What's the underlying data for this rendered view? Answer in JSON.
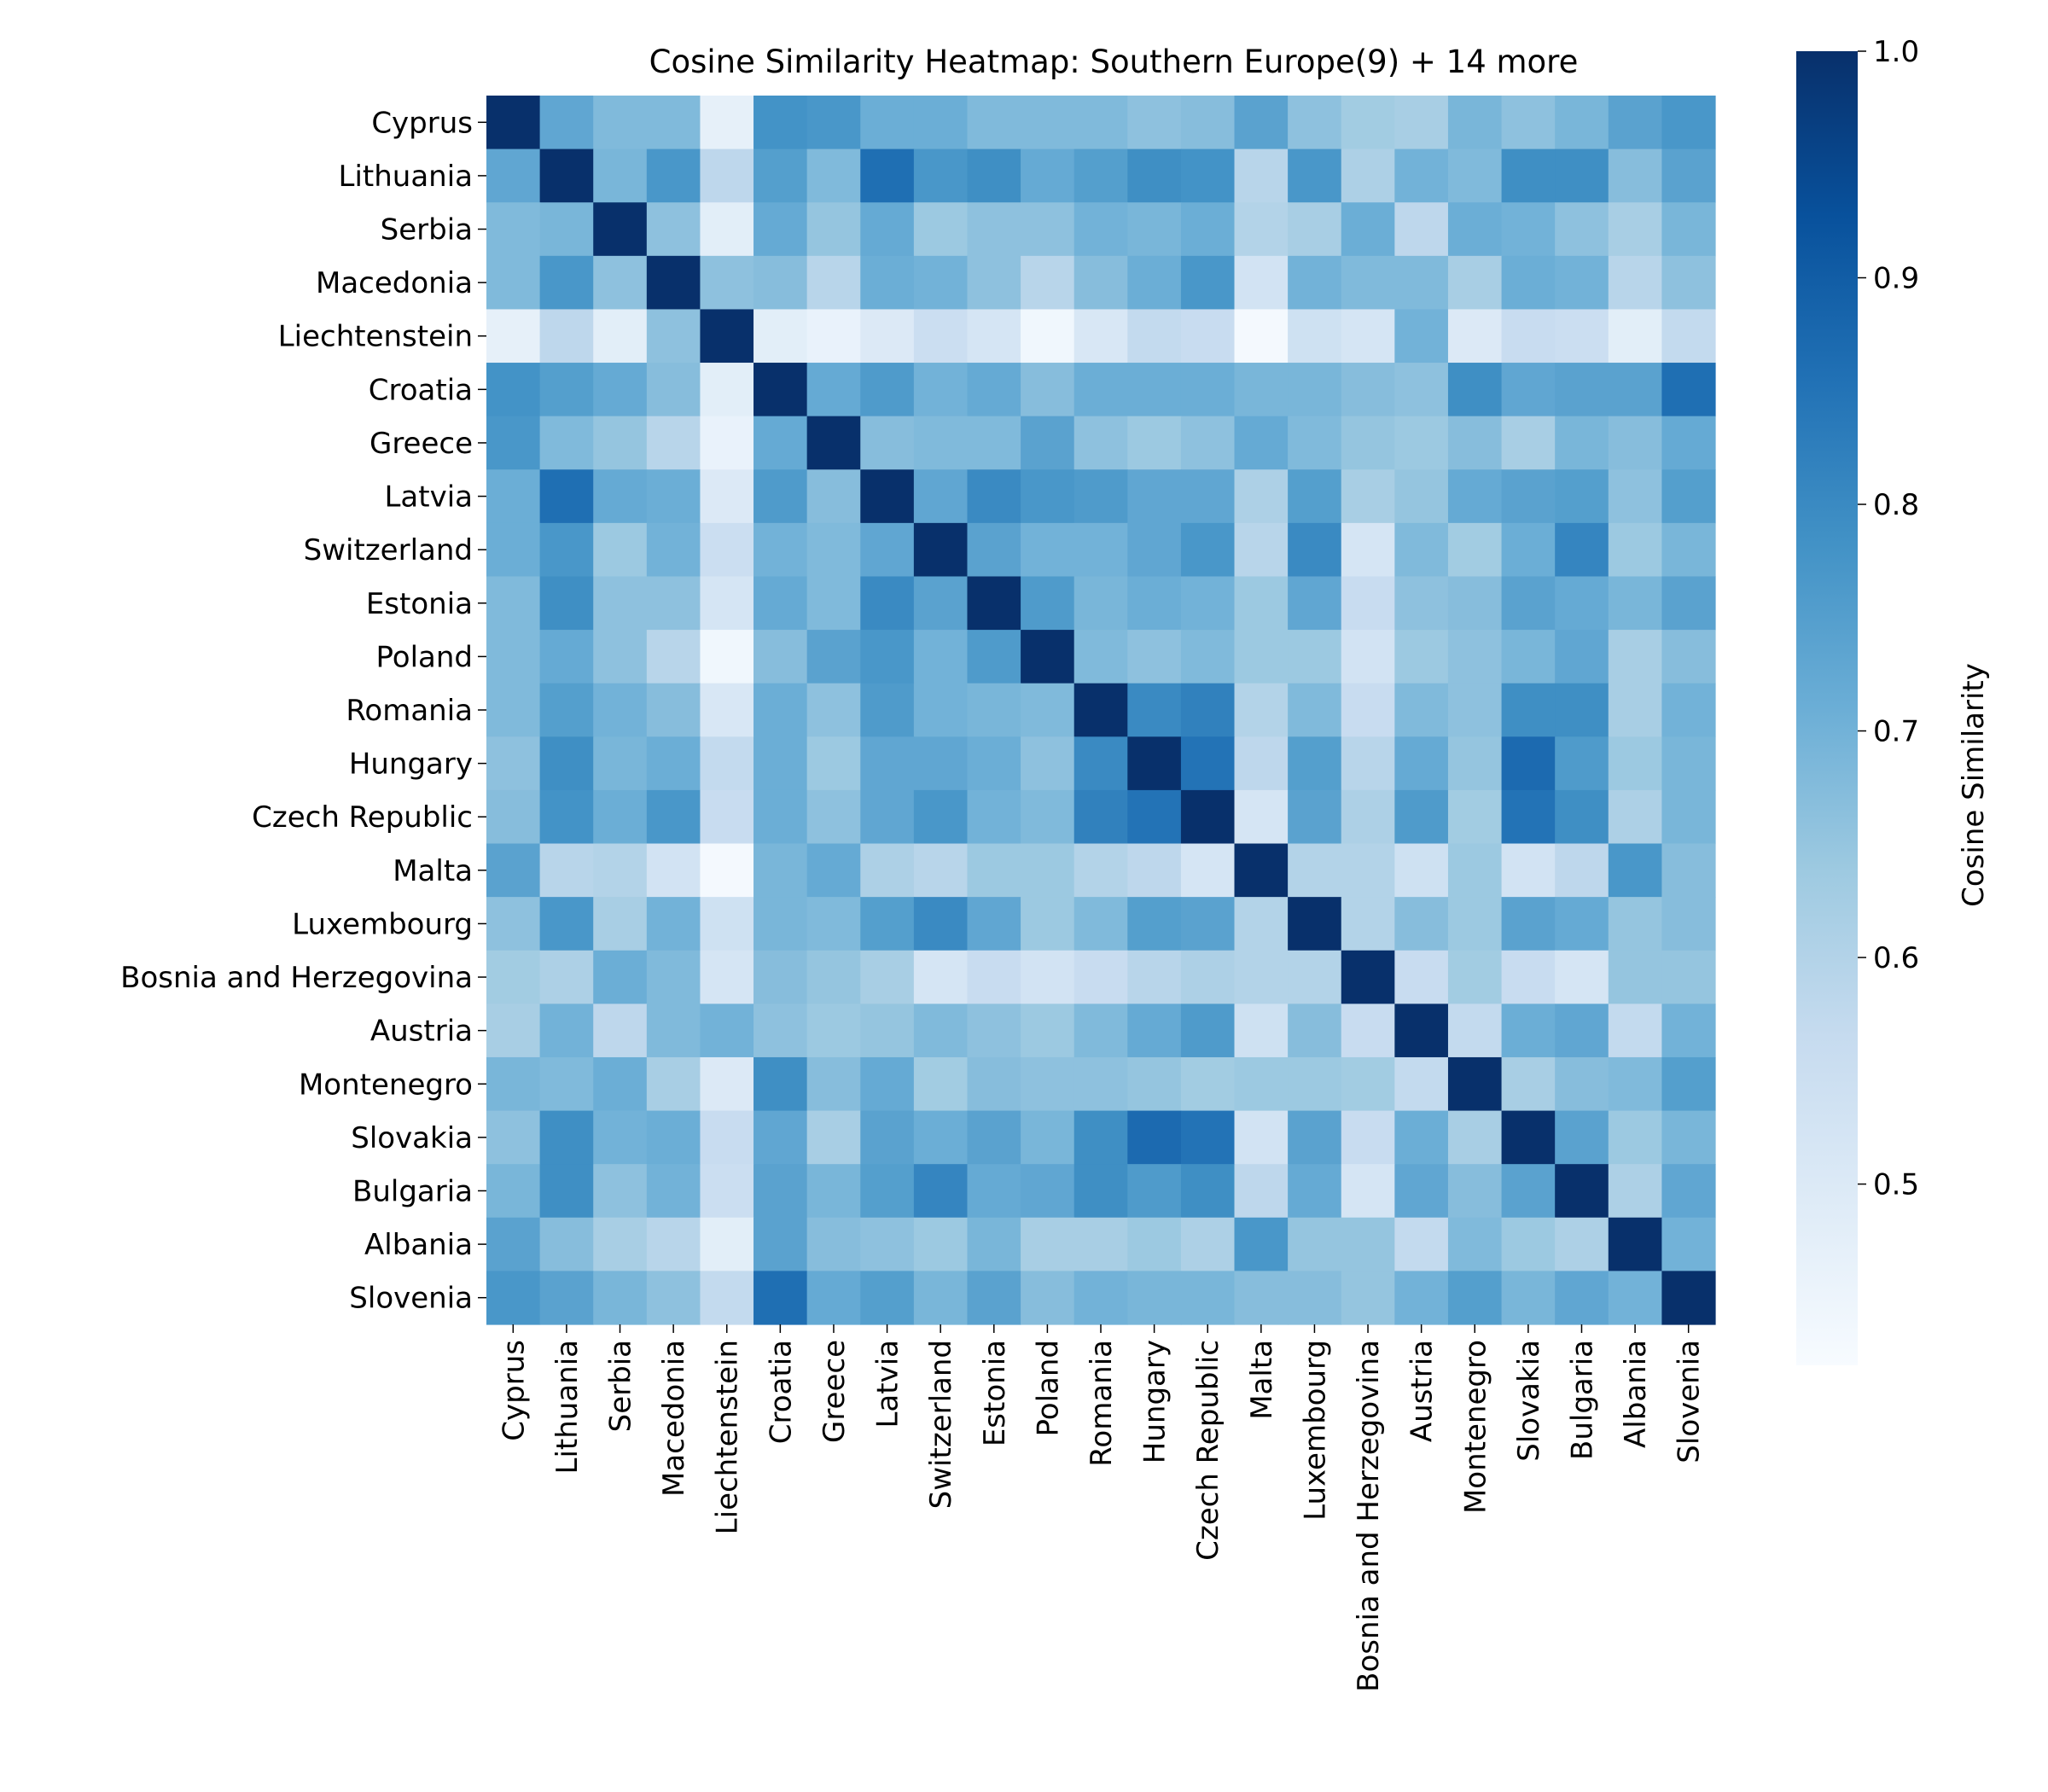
{
  "chart_data": {
    "type": "heatmap",
    "title": "Cosine Similarity Heatmap: Southern Europe(9) + 14 more",
    "xlabel": "",
    "ylabel": "",
    "labels": [
      "Cyprus",
      "Lithuania",
      "Serbia",
      "Macedonia",
      "Liechtenstein",
      "Croatia",
      "Greece",
      "Latvia",
      "Switzerland",
      "Estonia",
      "Poland",
      "Romania",
      "Hungary",
      "Czech Republic",
      "Malta",
      "Luxembourg",
      "Bosnia and Herzegovina",
      "Austria",
      "Montenegro",
      "Slovakia",
      "Bulgaria",
      "Albania",
      "Slovenia"
    ],
    "values": [
      [
        1.0,
        0.73,
        0.68,
        0.68,
        0.47,
        0.78,
        0.77,
        0.71,
        0.71,
        0.68,
        0.68,
        0.68,
        0.66,
        0.67,
        0.74,
        0.66,
        0.63,
        0.62,
        0.69,
        0.66,
        0.69,
        0.74,
        0.77
      ],
      [
        0.73,
        1.0,
        0.69,
        0.77,
        0.58,
        0.75,
        0.68,
        0.86,
        0.77,
        0.79,
        0.72,
        0.75,
        0.79,
        0.78,
        0.59,
        0.77,
        0.61,
        0.7,
        0.68,
        0.79,
        0.79,
        0.67,
        0.74
      ],
      [
        0.68,
        0.69,
        1.0,
        0.66,
        0.48,
        0.72,
        0.65,
        0.72,
        0.64,
        0.66,
        0.66,
        0.7,
        0.69,
        0.71,
        0.6,
        0.62,
        0.71,
        0.58,
        0.71,
        0.7,
        0.66,
        0.62,
        0.69
      ],
      [
        0.68,
        0.77,
        0.66,
        1.0,
        0.66,
        0.67,
        0.59,
        0.71,
        0.7,
        0.66,
        0.59,
        0.67,
        0.71,
        0.77,
        0.53,
        0.7,
        0.68,
        0.68,
        0.62,
        0.71,
        0.7,
        0.59,
        0.66
      ],
      [
        0.47,
        0.58,
        0.48,
        0.66,
        1.0,
        0.48,
        0.46,
        0.5,
        0.55,
        0.52,
        0.44,
        0.51,
        0.57,
        0.56,
        0.43,
        0.54,
        0.52,
        0.7,
        0.5,
        0.56,
        0.55,
        0.48,
        0.57
      ],
      [
        0.78,
        0.75,
        0.72,
        0.67,
        0.48,
        1.0,
        0.72,
        0.76,
        0.7,
        0.72,
        0.67,
        0.71,
        0.71,
        0.71,
        0.69,
        0.69,
        0.67,
        0.66,
        0.79,
        0.73,
        0.74,
        0.74,
        0.86
      ],
      [
        0.77,
        0.68,
        0.65,
        0.59,
        0.46,
        0.72,
        1.0,
        0.67,
        0.68,
        0.68,
        0.74,
        0.66,
        0.64,
        0.66,
        0.72,
        0.68,
        0.65,
        0.64,
        0.67,
        0.62,
        0.69,
        0.67,
        0.72
      ],
      [
        0.71,
        0.86,
        0.72,
        0.71,
        0.5,
        0.76,
        0.67,
        1.0,
        0.73,
        0.8,
        0.77,
        0.76,
        0.73,
        0.73,
        0.61,
        0.75,
        0.62,
        0.65,
        0.72,
        0.74,
        0.75,
        0.66,
        0.75
      ],
      [
        0.71,
        0.77,
        0.64,
        0.7,
        0.55,
        0.7,
        0.68,
        0.73,
        1.0,
        0.74,
        0.7,
        0.7,
        0.73,
        0.77,
        0.59,
        0.8,
        0.52,
        0.68,
        0.63,
        0.71,
        0.81,
        0.64,
        0.69
      ],
      [
        0.68,
        0.79,
        0.66,
        0.66,
        0.52,
        0.72,
        0.68,
        0.8,
        0.74,
        1.0,
        0.76,
        0.69,
        0.71,
        0.7,
        0.64,
        0.73,
        0.56,
        0.66,
        0.67,
        0.74,
        0.72,
        0.69,
        0.74
      ],
      [
        0.68,
        0.72,
        0.66,
        0.59,
        0.44,
        0.67,
        0.74,
        0.77,
        0.7,
        0.76,
        1.0,
        0.68,
        0.66,
        0.68,
        0.64,
        0.64,
        0.53,
        0.64,
        0.66,
        0.69,
        0.73,
        0.62,
        0.67
      ],
      [
        0.68,
        0.75,
        0.7,
        0.67,
        0.51,
        0.71,
        0.66,
        0.76,
        0.7,
        0.69,
        0.68,
        1.0,
        0.8,
        0.82,
        0.6,
        0.68,
        0.56,
        0.68,
        0.66,
        0.79,
        0.79,
        0.62,
        0.7
      ],
      [
        0.66,
        0.79,
        0.69,
        0.71,
        0.57,
        0.71,
        0.64,
        0.73,
        0.73,
        0.71,
        0.66,
        0.8,
        1.0,
        0.85,
        0.58,
        0.75,
        0.59,
        0.72,
        0.65,
        0.87,
        0.76,
        0.64,
        0.69
      ],
      [
        0.67,
        0.78,
        0.71,
        0.77,
        0.56,
        0.71,
        0.66,
        0.73,
        0.77,
        0.7,
        0.68,
        0.82,
        0.85,
        1.0,
        0.52,
        0.74,
        0.61,
        0.76,
        0.63,
        0.85,
        0.79,
        0.61,
        0.69
      ],
      [
        0.74,
        0.59,
        0.6,
        0.53,
        0.43,
        0.69,
        0.72,
        0.61,
        0.59,
        0.64,
        0.64,
        0.6,
        0.58,
        0.52,
        1.0,
        0.6,
        0.6,
        0.54,
        0.64,
        0.53,
        0.58,
        0.77,
        0.67
      ],
      [
        0.66,
        0.77,
        0.62,
        0.7,
        0.54,
        0.69,
        0.68,
        0.75,
        0.8,
        0.73,
        0.64,
        0.68,
        0.75,
        0.74,
        0.6,
        1.0,
        0.6,
        0.67,
        0.64,
        0.74,
        0.72,
        0.65,
        0.67
      ],
      [
        0.63,
        0.61,
        0.71,
        0.68,
        0.52,
        0.67,
        0.65,
        0.62,
        0.52,
        0.56,
        0.53,
        0.56,
        0.59,
        0.61,
        0.6,
        0.6,
        1.0,
        0.56,
        0.63,
        0.56,
        0.52,
        0.65,
        0.65
      ],
      [
        0.62,
        0.7,
        0.58,
        0.68,
        0.7,
        0.66,
        0.64,
        0.65,
        0.68,
        0.66,
        0.64,
        0.68,
        0.72,
        0.76,
        0.54,
        0.67,
        0.56,
        1.0,
        0.57,
        0.71,
        0.73,
        0.57,
        0.7
      ],
      [
        0.69,
        0.68,
        0.71,
        0.62,
        0.5,
        0.79,
        0.67,
        0.72,
        0.63,
        0.67,
        0.66,
        0.66,
        0.65,
        0.63,
        0.64,
        0.64,
        0.63,
        0.57,
        1.0,
        0.62,
        0.67,
        0.68,
        0.75
      ],
      [
        0.66,
        0.79,
        0.7,
        0.71,
        0.56,
        0.73,
        0.62,
        0.74,
        0.71,
        0.74,
        0.69,
        0.79,
        0.87,
        0.85,
        0.53,
        0.74,
        0.56,
        0.71,
        0.62,
        1.0,
        0.74,
        0.64,
        0.69
      ],
      [
        0.69,
        0.79,
        0.66,
        0.7,
        0.55,
        0.74,
        0.69,
        0.75,
        0.81,
        0.72,
        0.73,
        0.79,
        0.76,
        0.79,
        0.58,
        0.72,
        0.52,
        0.73,
        0.67,
        0.74,
        1.0,
        0.61,
        0.73
      ],
      [
        0.74,
        0.67,
        0.62,
        0.59,
        0.48,
        0.74,
        0.67,
        0.66,
        0.64,
        0.69,
        0.62,
        0.62,
        0.64,
        0.61,
        0.77,
        0.65,
        0.65,
        0.57,
        0.68,
        0.64,
        0.61,
        1.0,
        0.7
      ],
      [
        0.77,
        0.74,
        0.69,
        0.66,
        0.57,
        0.86,
        0.72,
        0.75,
        0.69,
        0.74,
        0.67,
        0.7,
        0.69,
        0.69,
        0.67,
        0.67,
        0.65,
        0.7,
        0.75,
        0.69,
        0.73,
        0.7,
        1.0
      ]
    ],
    "colorbar": {
      "label": "Cosine Similarity",
      "min": 0.42,
      "max": 1.0,
      "ticks": [
        0.5,
        0.6,
        0.7,
        0.8,
        0.9,
        1.0
      ],
      "tick_labels": [
        "0.5",
        "0.6",
        "0.7",
        "0.8",
        "0.9",
        "1.0"
      ]
    },
    "colormap": [
      "#f7fbff",
      "#deebf7",
      "#c6dbef",
      "#9ecae1",
      "#6baed6",
      "#4292c6",
      "#2171b5",
      "#08519c",
      "#08306b"
    ],
    "grid": false
  }
}
